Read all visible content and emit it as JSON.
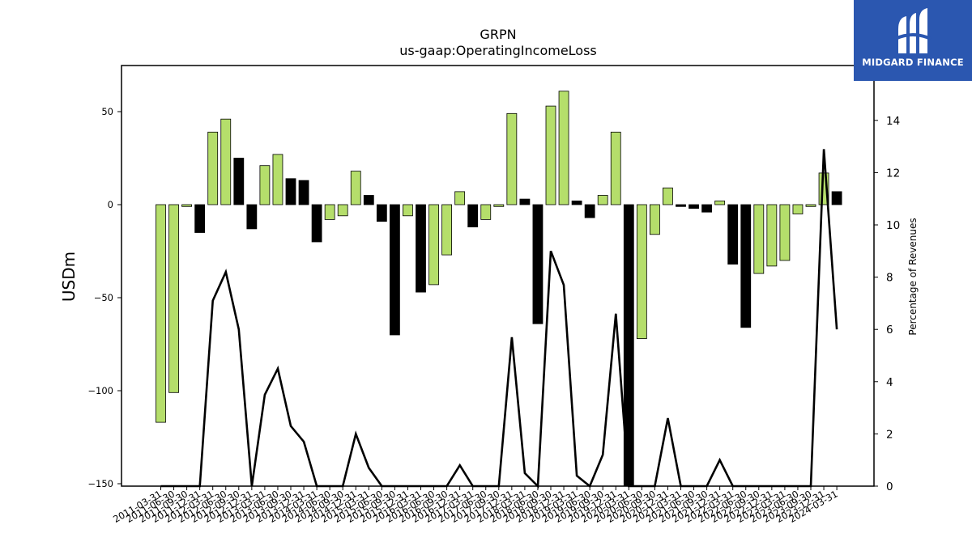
{
  "brand": {
    "name": "MIDGARD FINANCE",
    "bg_color": "#2b57b0"
  },
  "chart_data": {
    "type": "bar",
    "title": "GRPN",
    "subtitle": "us-gaap:OperatingIncomeLoss",
    "ylabel": "USDm",
    "y2label": "Percentage of Revenues",
    "ylim": [
      -150,
      75
    ],
    "y2lim": [
      0,
      16.1
    ],
    "yticks": [
      50,
      0,
      -50,
      -100,
      -150
    ],
    "y2ticks": [
      0,
      2,
      4,
      6,
      8,
      10,
      12,
      14
    ],
    "colors": {
      "positive_change": "#b5de6b",
      "negative_change": "#000000",
      "line": "#000000"
    },
    "categories": [
      "2011-03-31",
      "2011-06-30",
      "2011-09-30",
      "2011-12-31",
      "2012-03-31",
      "2012-06-30",
      "2012-09-30",
      "2012-12-31",
      "2013-03-31",
      "2013-06-30",
      "2013-09-30",
      "2013-12-31",
      "2014-03-31",
      "2014-06-30",
      "2014-09-30",
      "2014-12-31",
      "2015-03-31",
      "2015-06-30",
      "2015-09-30",
      "2015-12-31",
      "2016-03-31",
      "2016-06-30",
      "2016-09-30",
      "2016-12-31",
      "2017-03-31",
      "2017-06-30",
      "2017-09-30",
      "2017-12-31",
      "2018-03-31",
      "2018-06-30",
      "2018-09-30",
      "2018-12-31",
      "2019-03-31",
      "2019-06-30",
      "2019-09-30",
      "2019-12-31",
      "2020-03-31",
      "2020-06-30",
      "2020-09-30",
      "2020-12-31",
      "2021-03-31",
      "2021-06-30",
      "2021-09-30",
      "2021-12-31",
      "2022-03-31",
      "2022-06-30",
      "2022-09-30",
      "2022-12-31",
      "2023-03-31",
      "2023-06-30",
      "2023-09-30",
      "2023-12-31",
      "2024-03-31"
    ],
    "xtick_labels": [
      "2011-03-31",
      "2011-06-30",
      "2011-09-30",
      "2011-12-31",
      "2012-03-31",
      "2012-06-30",
      "2012-09-30",
      "2012-12-31",
      "2013-03-31",
      "2013-06-30",
      "2013-09-30",
      "2013-12-31",
      "2014-03-31",
      "2014-06-30",
      "2014-09-30",
      "2014-12-31",
      "2015-03-31",
      "2015-06-30",
      "2015-09-30",
      "2015-12-31",
      "2016-03-31",
      "2016-06-30",
      "2016-09-30",
      "2016-12-31",
      "2017-03-31",
      "2017-06-30",
      "2017-09-30",
      "2017-12-31",
      "2018-03-31",
      "2018-06-30",
      "2018-09-30",
      "2018-12-31",
      "2019-03-31",
      "2019-06-30",
      "2019-09-30",
      "2019-12-31",
      "2020-03-31",
      "2020-06-30",
      "2020-09-30",
      "2020-12-31",
      "2021-03-31",
      "2021-06-30",
      "2021-09-30",
      "2021-12-31",
      "2022-03-31",
      "2022-06-30",
      "2022-09-30",
      "2022-12-31",
      "2023-03-31",
      "2023-06-30",
      "2023-09-30",
      "2023-12-31",
      "2024-03-31"
    ],
    "series": [
      {
        "type": "bar",
        "axis": "left",
        "values": [
          -117,
          -101,
          -1,
          -15,
          39,
          46,
          25,
          -13,
          21,
          27,
          14,
          13,
          -20,
          -8,
          -6,
          18,
          5,
          -9,
          -70,
          -6,
          -47,
          -43,
          -27,
          7,
          -12,
          -8,
          -1,
          49,
          3,
          -64,
          53,
          61,
          2,
          -7,
          5,
          39,
          -154,
          -72,
          -16,
          9,
          -1,
          -2,
          -4,
          2,
          -32,
          -66,
          -37,
          -33,
          -30,
          -5,
          -1,
          17,
          7
        ]
      },
      {
        "type": "line",
        "axis": "right",
        "values": [
          0,
          0,
          0,
          0,
          7.1,
          8.2,
          6.0,
          0,
          3.5,
          4.5,
          2.3,
          1.7,
          0,
          0,
          0,
          2.0,
          0.7,
          0,
          0,
          0,
          0,
          0,
          0,
          0.8,
          0,
          0,
          0,
          5.7,
          0.5,
          0,
          9.0,
          7.7,
          0.4,
          0,
          1.2,
          6.6,
          0,
          0,
          0,
          2.6,
          0,
          0,
          0,
          1.0,
          0,
          0,
          0,
          0,
          0,
          0,
          0,
          12.9,
          6.0
        ]
      }
    ]
  }
}
